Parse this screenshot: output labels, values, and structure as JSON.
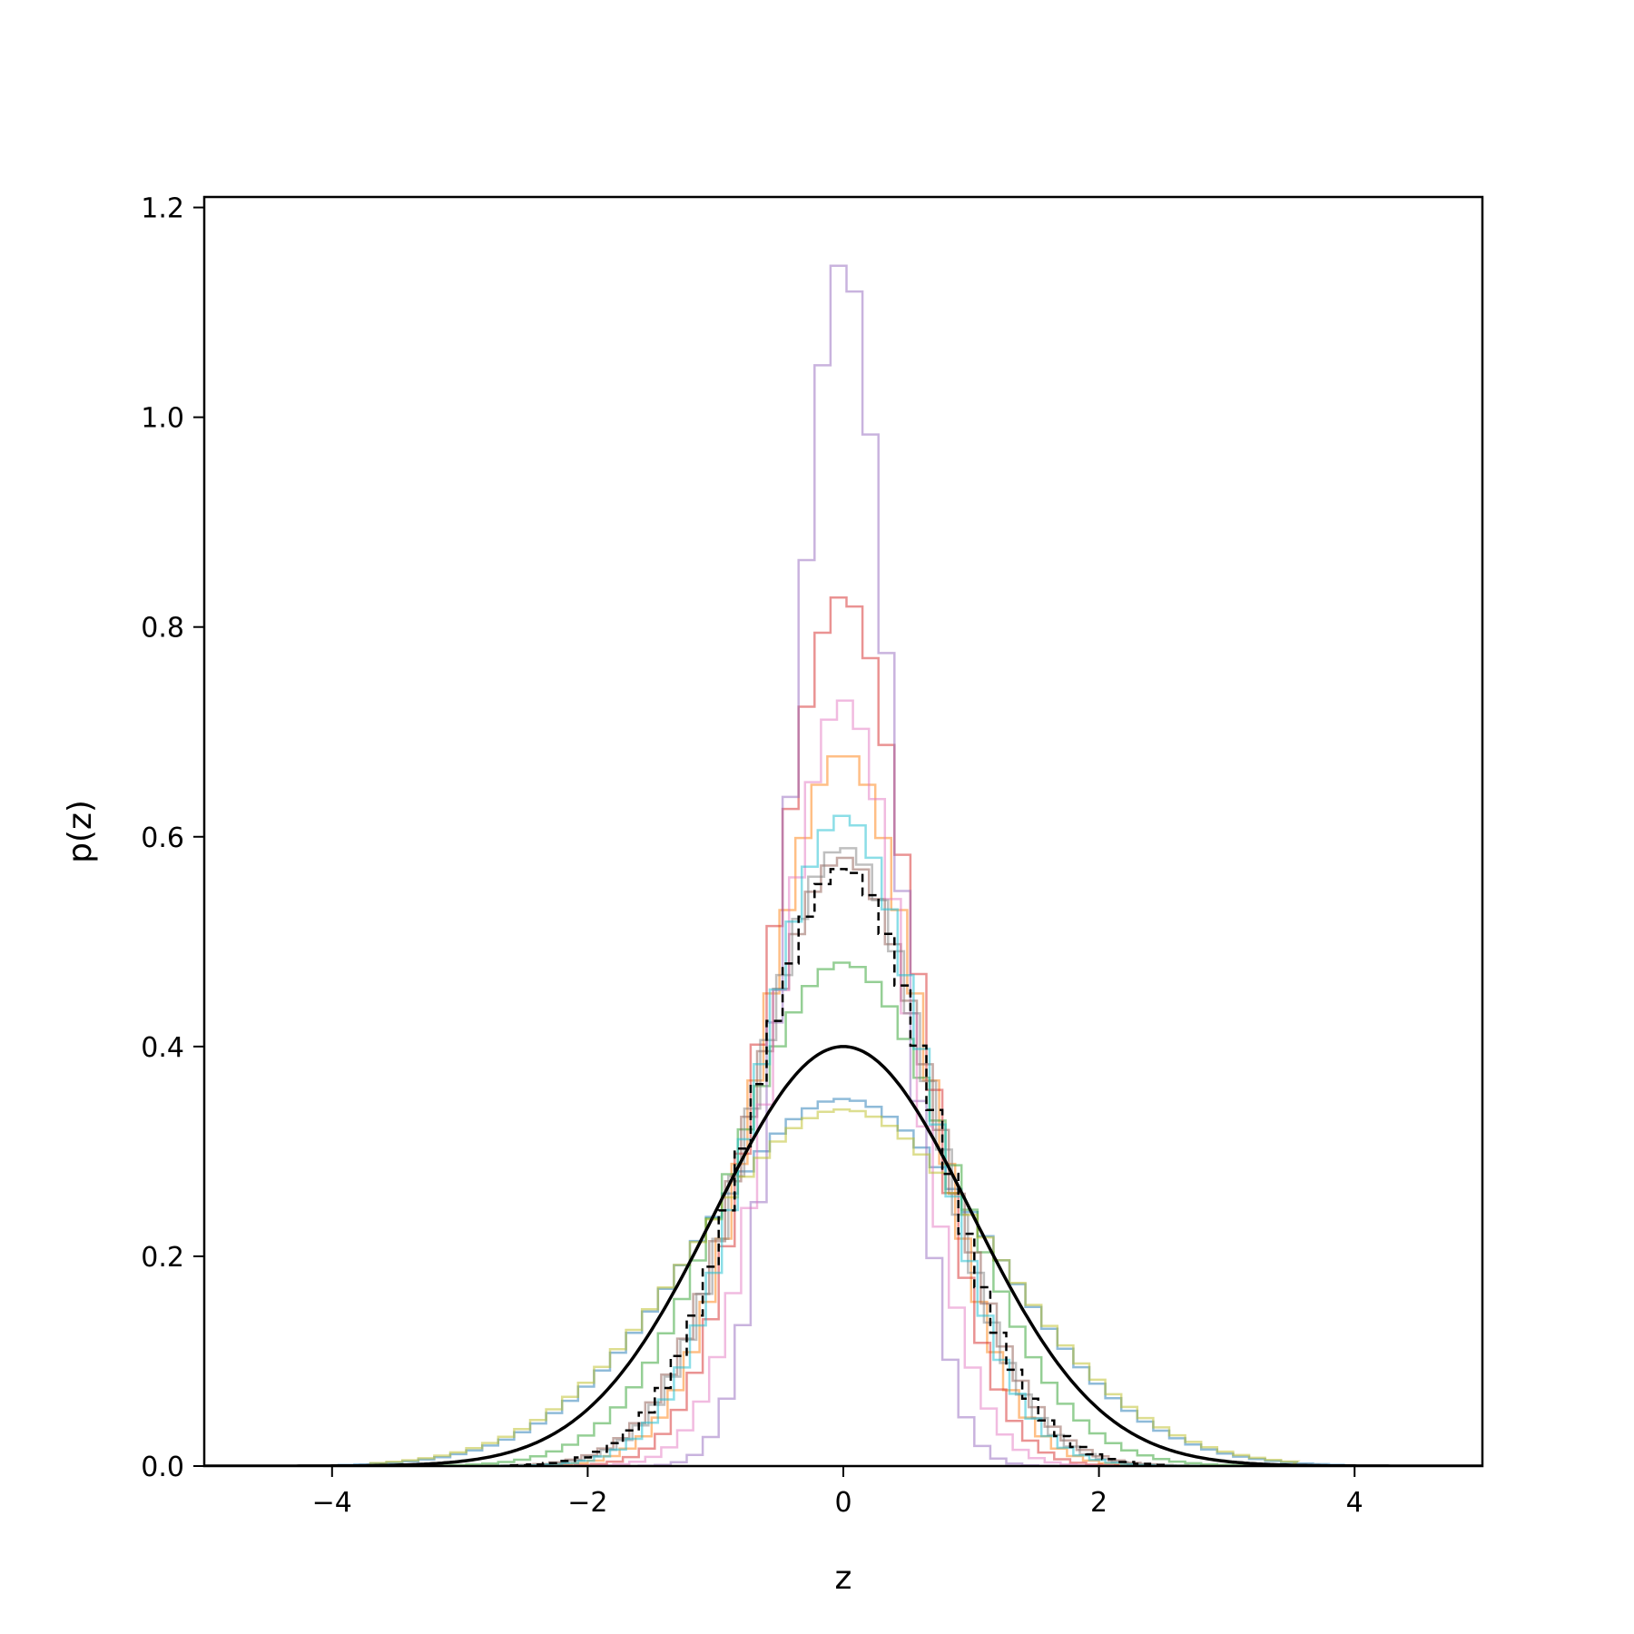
{
  "chart_data": {
    "type": "line",
    "title": "",
    "xlabel": "z",
    "ylabel": "p(z)",
    "xlim": [
      -5,
      5
    ],
    "ylim": [
      0,
      1.21
    ],
    "xticks": [
      -4,
      -2,
      0,
      2,
      4
    ],
    "xtick_labels": [
      "−4",
      "−2",
      "0",
      "2",
      "4"
    ],
    "yticks": [
      0.0,
      0.2,
      0.4,
      0.6,
      0.8,
      1.0,
      1.2
    ],
    "ytick_labels": [
      "0.0",
      "0.2",
      "0.4",
      "0.6",
      "0.8",
      "1.0",
      "1.2"
    ],
    "grid": false,
    "legend": "none",
    "reference_curve": {
      "style": "solid black",
      "color": "#000000",
      "mean": 0,
      "std": 1,
      "peak": 0.4
    },
    "histograms": [
      {
        "color": "#1f77b4",
        "style": "step",
        "std": 1.15,
        "z_min": -3.95,
        "z_max": 3.9,
        "peak": 0.35
      },
      {
        "color": "#ff7f0e",
        "style": "step",
        "std": 0.62,
        "z_min": -3.0,
        "z_max": 3.0,
        "peak": 0.68
      },
      {
        "color": "#2ca02c",
        "style": "step",
        "std": 0.85,
        "z_min": -3.2,
        "z_max": 3.2,
        "peak": 0.48
      },
      {
        "color": "#d62728",
        "style": "step",
        "std": 0.55,
        "z_min": -2.6,
        "z_max": 2.6,
        "peak": 0.83
      },
      {
        "color": "#9467bd",
        "style": "step",
        "std": 0.38,
        "z_min": -1.6,
        "z_max": 1.7,
        "peak": 1.15
      },
      {
        "color": "#8c564b",
        "style": "step",
        "std": 0.7,
        "z_min": -2.8,
        "z_max": 2.8,
        "peak": 0.58
      },
      {
        "color": "#e377c2",
        "style": "step",
        "std": 0.5,
        "z_min": -2.3,
        "z_max": 2.4,
        "peak": 0.73
      },
      {
        "color": "#7f7f7f",
        "style": "step",
        "std": 0.68,
        "z_min": -2.9,
        "z_max": 2.9,
        "peak": 0.59
      },
      {
        "color": "#bcbd22",
        "style": "step",
        "std": 1.18,
        "z_min": -3.7,
        "z_max": 3.5,
        "peak": 0.34
      },
      {
        "color": "#17becf",
        "style": "step",
        "std": 0.65,
        "z_min": -2.7,
        "z_max": 2.7,
        "peak": 0.62
      },
      {
        "color": "#000000",
        "style": "dashed step",
        "std": 0.7,
        "z_min": -2.6,
        "z_max": 2.5,
        "peak": 0.57
      }
    ]
  }
}
